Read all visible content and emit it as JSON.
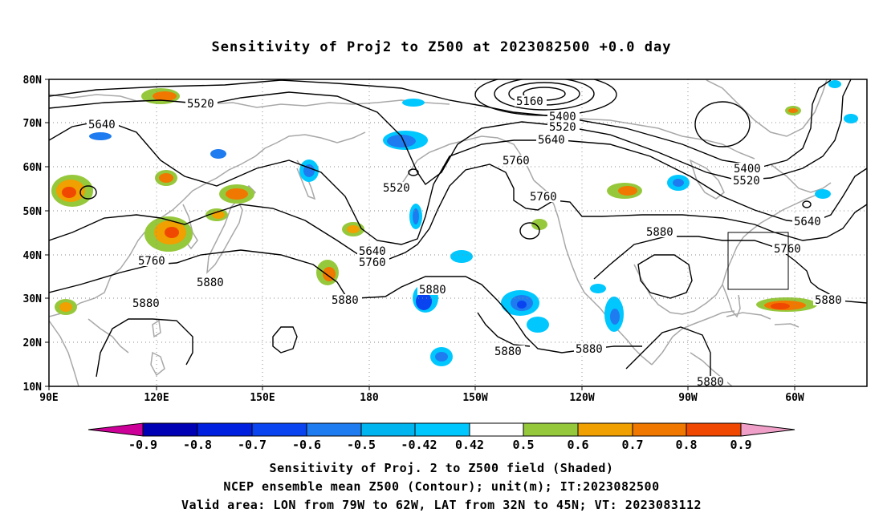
{
  "title": "Sensitivity of Proj2 to Z500 at 2023082500 +0.0 day",
  "map": {
    "lat_labels": [
      "80N",
      "70N",
      "60N",
      "50N",
      "40N",
      "30N",
      "20N",
      "10N"
    ],
    "lon_labels": [
      "90E",
      "120E",
      "150E",
      "180",
      "150W",
      "120W",
      "90W",
      "60W"
    ],
    "contour_labels": [
      "5160",
      "5400",
      "5400",
      "5520",
      "5520",
      "5520",
      "5520",
      "5640",
      "5640",
      "5640",
      "5640",
      "5760",
      "5760",
      "5760",
      "5760",
      "5760",
      "5880",
      "5880",
      "5880",
      "5880",
      "5880",
      "5880",
      "5880",
      "5880",
      "5880",
      "5880"
    ],
    "valid_box": {
      "lon_west": -79,
      "lon_east": -62,
      "lat_south": 32,
      "lat_north": 45
    }
  },
  "colorbar": {
    "labels": [
      "-0.9",
      "-0.8",
      "-0.7",
      "-0.6",
      "-0.5",
      "-0.42",
      "0.42",
      "0.5",
      "0.6",
      "0.7",
      "0.8",
      "0.9"
    ],
    "colors": [
      "#cc0099",
      "#0000b4",
      "#0020e0",
      "#0a44f0",
      "#1e7cf0",
      "#00b4f0",
      "#00c8ff",
      "#ffffff",
      "#96c83c",
      "#f0a000",
      "#f07800",
      "#f04800",
      "#ff0000",
      "#f0a0c8"
    ]
  },
  "caption": {
    "line1": "Sensitivity of Proj. 2 to Z500 field (Shaded)",
    "line2": "NCEP ensemble mean Z500 (Contour); unit(m); IT:2023082500",
    "line3": "Valid area: LON from 79W to 62W, LAT from 32N to 45N; VT: 2023083112"
  }
}
